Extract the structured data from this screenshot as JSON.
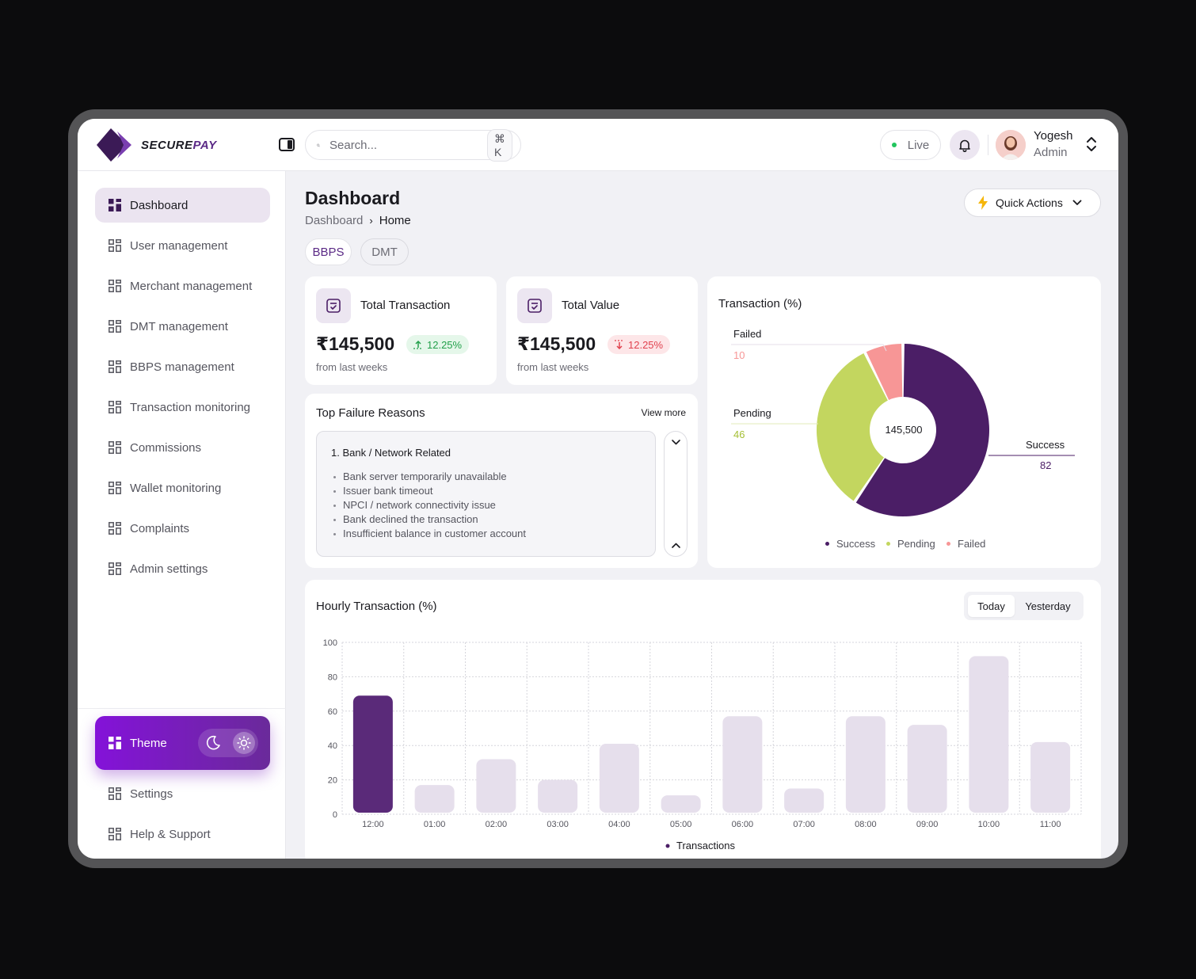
{
  "brand": {
    "prefix": "SECURE",
    "suffix": "PAY"
  },
  "search": {
    "placeholder": "Search...",
    "shortcut": "⌘ K"
  },
  "status": {
    "label": "Live"
  },
  "user": {
    "name": "Yogesh",
    "role": "Admin"
  },
  "sidebar": {
    "items": [
      {
        "label": "Dashboard",
        "active": true
      },
      {
        "label": "User management"
      },
      {
        "label": "Merchant management"
      },
      {
        "label": "DMT management"
      },
      {
        "label": "BBPS management"
      },
      {
        "label": "Transaction monitoring"
      },
      {
        "label": "Commissions"
      },
      {
        "label": "Wallet monitoring"
      },
      {
        "label": "Complaints"
      },
      {
        "label": "Admin settings"
      }
    ],
    "theme_label": "Theme",
    "bottom_items": [
      {
        "label": "Settings"
      },
      {
        "label": "Help & Support"
      }
    ]
  },
  "page": {
    "title": "Dashboard",
    "breadcrumb": {
      "root": "Dashboard",
      "separator": "›",
      "current": "Home"
    },
    "quick_actions_label": "Quick Actions",
    "tabs": [
      {
        "label": "BBPS",
        "active": true
      },
      {
        "label": "DMT"
      }
    ]
  },
  "stats": [
    {
      "label": "Total Transaction",
      "value": "₹145,500",
      "change": "12.25%",
      "trend": "up",
      "sub": "from last weeks"
    },
    {
      "label": "Total Value",
      "value": "₹145,500",
      "change": "12.25%",
      "trend": "down",
      "sub": "from last weeks"
    }
  ],
  "failures": {
    "title": "Top Failure Reasons",
    "view_more": "View more",
    "heading": "1. Bank / Network Related",
    "items": [
      "Bank server temporarily unavailable",
      "Issuer bank timeout",
      "NPCI / network connectivity issue",
      "Bank declined the transaction",
      "Insufficient balance in customer account"
    ]
  },
  "colors": {
    "success": "#4b1e66",
    "pending": "#c3d65f",
    "failed": "#f79696",
    "bar_highlight": "#5a2a79",
    "bar": "#e6dfec"
  },
  "donut": {
    "title": "Transaction (%)",
    "center_label": "145,500",
    "labels": {
      "failed": "Failed",
      "pending": "Pending",
      "success": "Success"
    },
    "values": {
      "failed": "10",
      "pending": "46",
      "success": "82"
    },
    "legend": [
      "Success",
      "Pending",
      "Failed"
    ]
  },
  "hourly": {
    "title": "Hourly Transaction (%)",
    "ranges": {
      "active": "Today",
      "other": "Yesterday"
    },
    "legend_label": "Transactions"
  },
  "chart_data": {
    "type": "bar",
    "title": "Hourly Transaction (%)",
    "categories": [
      "12:00",
      "01:00",
      "02:00",
      "03:00",
      "04:00",
      "05:00",
      "06:00",
      "07:00",
      "08:00",
      "09:00",
      "10:00",
      "11:00"
    ],
    "series": [
      {
        "name": "Transactions",
        "values": [
          69,
          17,
          32,
          20,
          41,
          11,
          57,
          15,
          57,
          52,
          92,
          42
        ]
      }
    ],
    "highlight_index": 0,
    "yticks": [
      0,
      20,
      40,
      60,
      80,
      100
    ],
    "ylim": [
      0,
      100
    ],
    "grid": true,
    "legend": "bottom"
  }
}
